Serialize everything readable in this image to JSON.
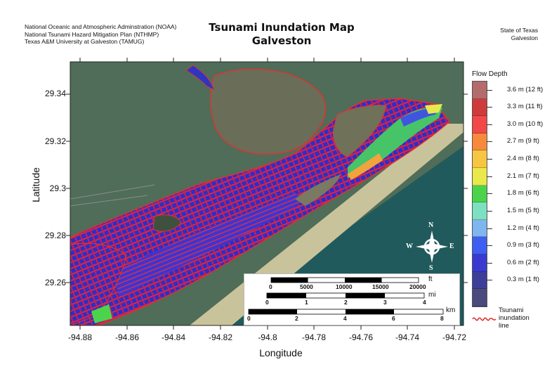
{
  "header": {
    "left_lines": [
      "National Oceanic and Atmospheric Adminstration (NOAA)",
      "National Tsunami Hazard Mitigation Plan (NTHMP)",
      "Texas A&M University at Galveston (TAMUG)"
    ],
    "title_line1": "Tsunami Inundation Map",
    "title_line2": "Galveston",
    "right_line1": "State of Texas",
    "right_line2": "Galveston"
  },
  "axes": {
    "xlabel": "Longitude",
    "ylabel": "Latitude",
    "x_ticks": [
      "-94.88",
      "-94.86",
      "-94.84",
      "-94.82",
      "-94.8",
      "-94.78",
      "-94.76",
      "-94.74",
      "-94.72"
    ],
    "y_ticks": [
      "29.34",
      "29.32",
      "29.3",
      "29.28",
      "29.26"
    ]
  },
  "legend": {
    "title": "Flow Depth",
    "levels": [
      {
        "label": "3.6 m (12 ft)",
        "color": "#b46b6b"
      },
      {
        "label": "3.3 m (11 ft)",
        "color": "#cf3b3b"
      },
      {
        "label": "3.0 m (10 ft)",
        "color": "#f24848"
      },
      {
        "label": "2.7 m (9 ft)",
        "color": "#f78a3a"
      },
      {
        "label": "2.4 m (8 ft)",
        "color": "#f6c642"
      },
      {
        "label": "2.1 m (7 ft)",
        "color": "#e9e94c"
      },
      {
        "label": "1.8 m (6 ft)",
        "color": "#4bd44b"
      },
      {
        "label": "1.5 m (5 ft)",
        "color": "#7de0c0"
      },
      {
        "label": "1.2 m (4 ft)",
        "color": "#7fb6ee"
      },
      {
        "label": "0.9 m (3 ft)",
        "color": "#3d5ef0"
      },
      {
        "label": "0.6 m (2 ft)",
        "color": "#3a3ad0"
      },
      {
        "label": "0.3 m (1 ft)",
        "color": "#3d3d9a"
      },
      {
        "label": "",
        "color": "#4a4a7c"
      }
    ],
    "inundation_label": "Tsunami inundation line",
    "inundation_color": "#e02020"
  },
  "compass": {
    "n": "N",
    "s": "S",
    "e": "E",
    "w": "W"
  },
  "scalebars": {
    "ft": {
      "unit": "ft",
      "labels": [
        "0",
        "5000",
        "10000",
        "15000",
        "20000"
      ]
    },
    "mi": {
      "unit": "mi",
      "labels": [
        "0",
        "1",
        "2",
        "3",
        "4"
      ]
    },
    "km": {
      "unit": "km",
      "labels": [
        "0",
        "2",
        "4",
        "6",
        "8"
      ]
    }
  },
  "colors": {
    "bay_water": "#4d6a55",
    "gulf_water": "#1f5558",
    "land": "#666a55",
    "beach": "#cfc9a4"
  }
}
